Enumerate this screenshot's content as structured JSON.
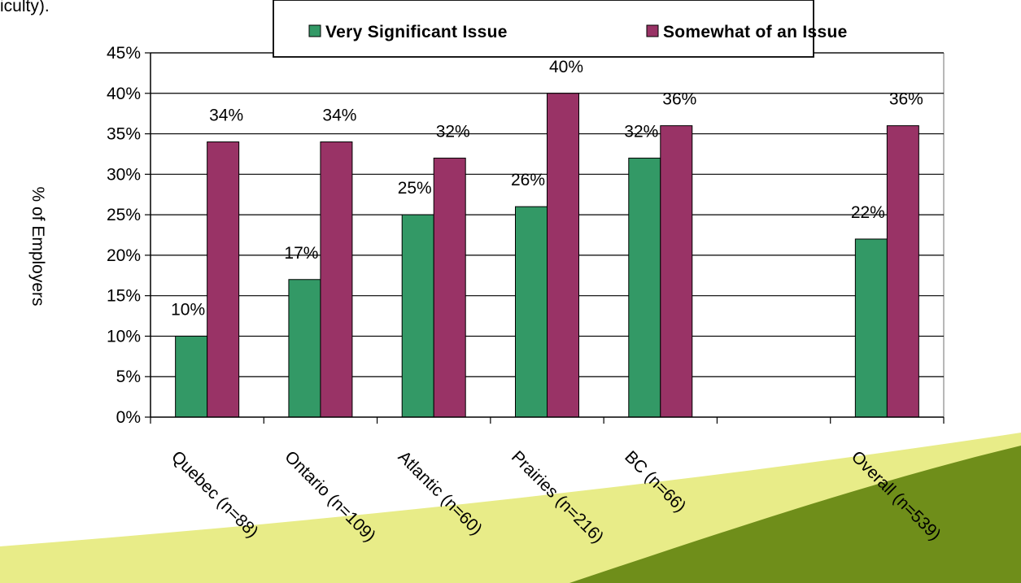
{
  "page": {
    "top_text": "iculty)."
  },
  "chart_data": {
    "type": "bar",
    "ylabel": "% of Employers",
    "ylim": [
      0,
      45
    ],
    "yticks": [
      "0%",
      "5%",
      "10%",
      "15%",
      "20%",
      "25%",
      "30%",
      "35%",
      "40%",
      "45%"
    ],
    "grid": true,
    "legend_position": "top",
    "categories": [
      "Quebec (n=88)",
      "Ontario (n=109)",
      "Atlantic (n=60)",
      "Prairies (n=216)",
      "BC (n=66)",
      "",
      "Overall (n=539)"
    ],
    "series": [
      {
        "name": "Very Significant Issue",
        "color": "#339966",
        "values": [
          10,
          17,
          25,
          26,
          32,
          null,
          22
        ],
        "labels": [
          "10%",
          "17%",
          "25%",
          "26%",
          "32%",
          "",
          "22%"
        ]
      },
      {
        "name": "Somewhat of an Issue",
        "color": "#993366",
        "values": [
          34,
          34,
          32,
          40,
          36,
          null,
          36
        ],
        "labels": [
          "34%",
          "34%",
          "32%",
          "40%",
          "36%",
          "",
          "36%"
        ]
      }
    ]
  },
  "decor": {
    "swoosh_light": "#e8ec88",
    "swoosh_dark": "#6f8e1a"
  }
}
